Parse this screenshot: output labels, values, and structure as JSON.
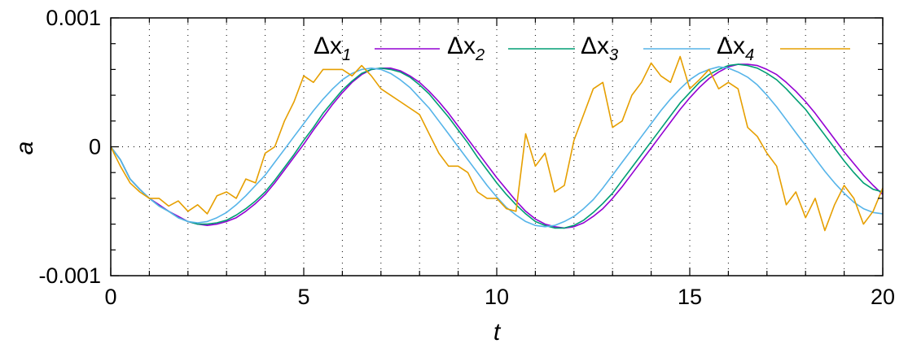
{
  "chart_data": {
    "type": "line",
    "xlabel": "t",
    "ylabel": "a",
    "xlim": [
      0,
      20
    ],
    "ylim": [
      -0.001,
      0.001
    ],
    "x_ticks": [
      0,
      5,
      10,
      15,
      20
    ],
    "x_tick_labels": [
      "0",
      "5",
      "10",
      "15",
      "20"
    ],
    "y_ticks": [
      -0.001,
      0,
      0.001
    ],
    "y_tick_labels": [
      "-0.001",
      "0",
      "0.001"
    ],
    "grid": "dotted vertical at each integer t; dotted horizontal at a = 0",
    "legend_position": "top-right",
    "series": [
      {
        "name": "Δx1",
        "legend_base": "Δx",
        "legend_sub": "1",
        "color": "#9400d3",
        "x": [
          0,
          0.25,
          0.5,
          0.75,
          1,
          1.25,
          1.5,
          1.75,
          2,
          2.25,
          2.5,
          2.75,
          3,
          3.25,
          3.5,
          3.75,
          4,
          4.25,
          4.5,
          4.75,
          5,
          5.25,
          5.5,
          5.75,
          6,
          6.25,
          6.5,
          6.75,
          7,
          7.25,
          7.5,
          7.75,
          8,
          8.25,
          8.5,
          8.75,
          9,
          9.25,
          9.5,
          9.75,
          10,
          10.25,
          10.5,
          10.75,
          11,
          11.25,
          11.5,
          11.75,
          12,
          12.25,
          12.5,
          12.75,
          13,
          13.25,
          13.5,
          13.75,
          14,
          14.25,
          14.5,
          14.75,
          15,
          15.25,
          15.5,
          15.75,
          16,
          16.25,
          16.5,
          16.75,
          17,
          17.25,
          17.5,
          17.75,
          18,
          18.25,
          18.5,
          18.75,
          19,
          19.25,
          19.5,
          19.75,
          20
        ],
        "y": [
          0,
          -0.0001,
          -0.00025,
          -0.00033,
          -0.0004,
          -0.00045,
          -0.0005,
          -0.00054,
          -0.00058,
          -0.0006,
          -0.00061,
          -0.0006,
          -0.00058,
          -0.00055,
          -0.0005,
          -0.00044,
          -0.00037,
          -0.00028,
          -0.00018,
          -8e-05,
          2e-05,
          0.00013,
          0.00023,
          0.00033,
          0.00042,
          0.0005,
          0.00056,
          0.0006,
          0.00061,
          0.00061,
          0.00059,
          0.00055,
          0.0005,
          0.00043,
          0.00035,
          0.00026,
          0.00016,
          6e-05,
          -4e-05,
          -0.00014,
          -0.00024,
          -0.00033,
          -0.00042,
          -0.0005,
          -0.00056,
          -0.0006,
          -0.00062,
          -0.00063,
          -0.00062,
          -0.00059,
          -0.00054,
          -0.00048,
          -0.0004,
          -0.00031,
          -0.00021,
          -0.00011,
          -1e-05,
          9e-05,
          0.00019,
          0.00029,
          0.00038,
          0.00046,
          0.00053,
          0.00058,
          0.00062,
          0.00064,
          0.00064,
          0.00063,
          0.0006,
          0.00056,
          0.0005,
          0.00043,
          0.00035,
          0.00026,
          0.00016,
          6e-05,
          -4e-05,
          -0.00013,
          -0.00022,
          -0.0003,
          -0.00037
        ]
      },
      {
        "name": "Δx2",
        "legend_base": "Δx",
        "legend_sub": "2",
        "color": "#009e73",
        "x": [
          0,
          0.25,
          0.5,
          0.75,
          1,
          1.25,
          1.5,
          1.75,
          2,
          2.25,
          2.5,
          2.75,
          3,
          3.25,
          3.5,
          3.75,
          4,
          4.25,
          4.5,
          4.75,
          5,
          5.25,
          5.5,
          5.75,
          6,
          6.25,
          6.5,
          6.75,
          7,
          7.25,
          7.5,
          7.75,
          8,
          8.25,
          8.5,
          8.75,
          9,
          9.25,
          9.5,
          9.75,
          10,
          10.25,
          10.5,
          10.75,
          11,
          11.25,
          11.5,
          11.75,
          12,
          12.25,
          12.5,
          12.75,
          13,
          13.25,
          13.5,
          13.75,
          14,
          14.25,
          14.5,
          14.75,
          15,
          15.25,
          15.5,
          15.75,
          16,
          16.25,
          16.5,
          16.75,
          17,
          17.25,
          17.5,
          17.75,
          18,
          18.25,
          18.5,
          18.75,
          19,
          19.25,
          19.5,
          19.75,
          20
        ],
        "y": [
          0,
          -0.0001,
          -0.00025,
          -0.00033,
          -0.0004,
          -0.00046,
          -0.0005,
          -0.00055,
          -0.00058,
          -0.0006,
          -0.0006,
          -0.00059,
          -0.00057,
          -0.00053,
          -0.00048,
          -0.00042,
          -0.00035,
          -0.00026,
          -0.00016,
          -6e-05,
          5e-05,
          0.00015,
          0.00026,
          0.00035,
          0.00044,
          0.00051,
          0.00057,
          0.0006,
          0.00061,
          0.0006,
          0.00058,
          0.00054,
          0.00048,
          0.00041,
          0.00032,
          0.00023,
          0.00013,
          3e-05,
          -8e-05,
          -0.00018,
          -0.00028,
          -0.00037,
          -0.00045,
          -0.00052,
          -0.00058,
          -0.00061,
          -0.00063,
          -0.00063,
          -0.00061,
          -0.00057,
          -0.00051,
          -0.00044,
          -0.00036,
          -0.00026,
          -0.00016,
          -6e-05,
          4e-05,
          0.00014,
          0.00024,
          0.00034,
          0.00042,
          0.0005,
          0.00056,
          0.0006,
          0.00063,
          0.00064,
          0.00063,
          0.00061,
          0.00057,
          0.00052,
          0.00045,
          0.00037,
          0.00029,
          0.00019,
          9e-05,
          -1e-05,
          -0.00011,
          -0.0002,
          -0.00028,
          -0.00033,
          -0.00035
        ]
      },
      {
        "name": "Δx3",
        "legend_base": "Δx",
        "legend_sub": "3",
        "color": "#56b4e9",
        "x": [
          0,
          0.25,
          0.5,
          0.75,
          1,
          1.25,
          1.5,
          1.75,
          2,
          2.25,
          2.5,
          2.75,
          3,
          3.25,
          3.5,
          3.75,
          4,
          4.25,
          4.5,
          4.75,
          5,
          5.25,
          5.5,
          5.75,
          6,
          6.25,
          6.5,
          6.75,
          7,
          7.25,
          7.5,
          7.75,
          8,
          8.25,
          8.5,
          8.75,
          9,
          9.25,
          9.5,
          9.75,
          10,
          10.25,
          10.5,
          10.75,
          11,
          11.25,
          11.5,
          11.75,
          12,
          12.25,
          12.5,
          12.75,
          13,
          13.25,
          13.5,
          13.75,
          14,
          14.25,
          14.5,
          14.75,
          15,
          15.25,
          15.5,
          15.75,
          16,
          16.25,
          16.5,
          16.75,
          17,
          17.25,
          17.5,
          17.75,
          18,
          18.25,
          18.5,
          18.75,
          19,
          19.25,
          19.5,
          19.75,
          20
        ],
        "y": [
          0,
          -0.0001,
          -0.00025,
          -0.00033,
          -0.0004,
          -0.00046,
          -0.0005,
          -0.00055,
          -0.00058,
          -0.00059,
          -0.00058,
          -0.00055,
          -0.00051,
          -0.00045,
          -0.00038,
          -0.0003,
          -0.00022,
          -0.00012,
          -2e-05,
          8e-05,
          0.00018,
          0.00028,
          0.00037,
          0.00045,
          0.00052,
          0.00057,
          0.0006,
          0.00061,
          0.0006,
          0.00057,
          0.00052,
          0.00046,
          0.00038,
          0.0003,
          0.0002,
          0.0001,
          0,
          -0.0001,
          -0.0002,
          -0.0003,
          -0.00039,
          -0.00047,
          -0.00053,
          -0.00058,
          -0.00061,
          -0.00062,
          -0.00061,
          -0.00058,
          -0.00054,
          -0.00048,
          -0.00041,
          -0.00032,
          -0.00022,
          -0.00012,
          -2e-05,
          8e-05,
          0.00018,
          0.00028,
          0.00037,
          0.00045,
          0.00052,
          0.00057,
          0.0006,
          0.00062,
          0.00061,
          0.00058,
          0.00054,
          0.00048,
          0.0004,
          0.00031,
          0.00021,
          0.00011,
          1e-05,
          -9e-05,
          -0.00019,
          -0.00028,
          -0.00036,
          -0.00043,
          -0.00048,
          -0.00051,
          -0.00052
        ]
      },
      {
        "name": "Δx4",
        "legend_base": "Δx",
        "legend_sub": "4",
        "color": "#e69f00",
        "x": [
          0,
          0.25,
          0.5,
          0.75,
          1,
          1.25,
          1.5,
          1.75,
          2,
          2.25,
          2.5,
          2.75,
          3,
          3.25,
          3.5,
          3.75,
          4,
          4.25,
          4.5,
          4.75,
          5,
          5.25,
          5.5,
          5.75,
          6,
          6.25,
          6.5,
          6.75,
          7,
          7.25,
          7.5,
          7.75,
          8,
          8.25,
          8.5,
          8.75,
          9,
          9.25,
          9.5,
          9.75,
          10,
          10.25,
          10.5,
          10.75,
          11,
          11.25,
          11.5,
          11.75,
          12,
          12.25,
          12.5,
          12.75,
          13,
          13.25,
          13.5,
          13.75,
          14,
          14.25,
          14.5,
          14.75,
          15,
          15.25,
          15.5,
          15.75,
          16,
          16.25,
          16.5,
          16.75,
          17,
          17.25,
          17.5,
          17.75,
          18,
          18.25,
          18.5,
          18.75,
          19,
          19.25,
          19.5,
          19.75,
          20
        ],
        "y": [
          0,
          -0.00015,
          -0.00028,
          -0.00035,
          -0.0004,
          -0.0004,
          -0.00046,
          -0.00042,
          -0.0005,
          -0.00045,
          -0.00052,
          -0.00038,
          -0.00035,
          -0.0004,
          -0.00025,
          -0.00028,
          -5e-05,
          0,
          0.0002,
          0.00035,
          0.00055,
          0.0005,
          0.0006,
          0.0006,
          0.0006,
          0.00055,
          0.00063,
          0.00055,
          0.00045,
          0.0004,
          0.00035,
          0.0003,
          0.00025,
          0.0001,
          -5e-05,
          -0.00015,
          -0.00015,
          -0.0002,
          -0.00035,
          -0.0004,
          -0.0004,
          -0.00048,
          -0.0005,
          0.0001,
          -0.00015,
          -5e-05,
          -0.00035,
          -0.0003,
          5e-05,
          0.00025,
          0.00045,
          0.0005,
          0.00015,
          0.0002,
          0.0004,
          0.0005,
          0.00065,
          0.00055,
          0.0005,
          0.0007,
          0.00045,
          0.00052,
          0.0006,
          0.00045,
          0.0005,
          0.00045,
          0.00015,
          8e-05,
          -5e-05,
          -0.00015,
          -0.00045,
          -0.00035,
          -0.00055,
          -0.0004,
          -0.00065,
          -0.00045,
          -0.0003,
          -0.0004,
          -0.0006,
          -0.0005,
          -0.00032
        ]
      }
    ]
  }
}
